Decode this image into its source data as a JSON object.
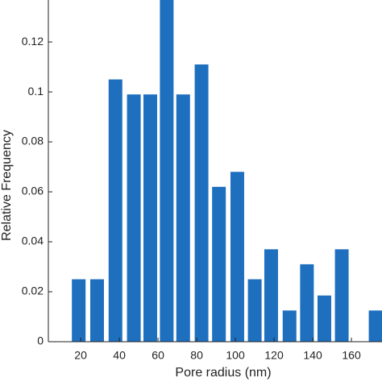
{
  "chart_data": {
    "type": "bar",
    "x_label": "Pore radius (nm)",
    "y_label": "Relative Frequency",
    "x": [
      19,
      28.5,
      38,
      47.5,
      56,
      64.5,
      73,
      82.5,
      91.5,
      101,
      110,
      118.5,
      128,
      137,
      146,
      155,
      172.5
    ],
    "values": [
      0.025,
      0.025,
      0.105,
      0.099,
      0.099,
      0.137,
      0.099,
      0.111,
      0.062,
      0.068,
      0.025,
      0.037,
      0.0125,
      0.031,
      0.0185,
      0.037,
      0.0125
    ],
    "color": "#1f6fbf",
    "xlim": [
      3.3,
      175.8
    ],
    "ylim": [
      0,
      0.1368
    ],
    "xticks": [
      20,
      40,
      60,
      80,
      100,
      120,
      140,
      160
    ],
    "yticks": [
      0,
      0.02,
      0.04,
      0.06,
      0.08,
      0.1,
      0.12
    ]
  }
}
